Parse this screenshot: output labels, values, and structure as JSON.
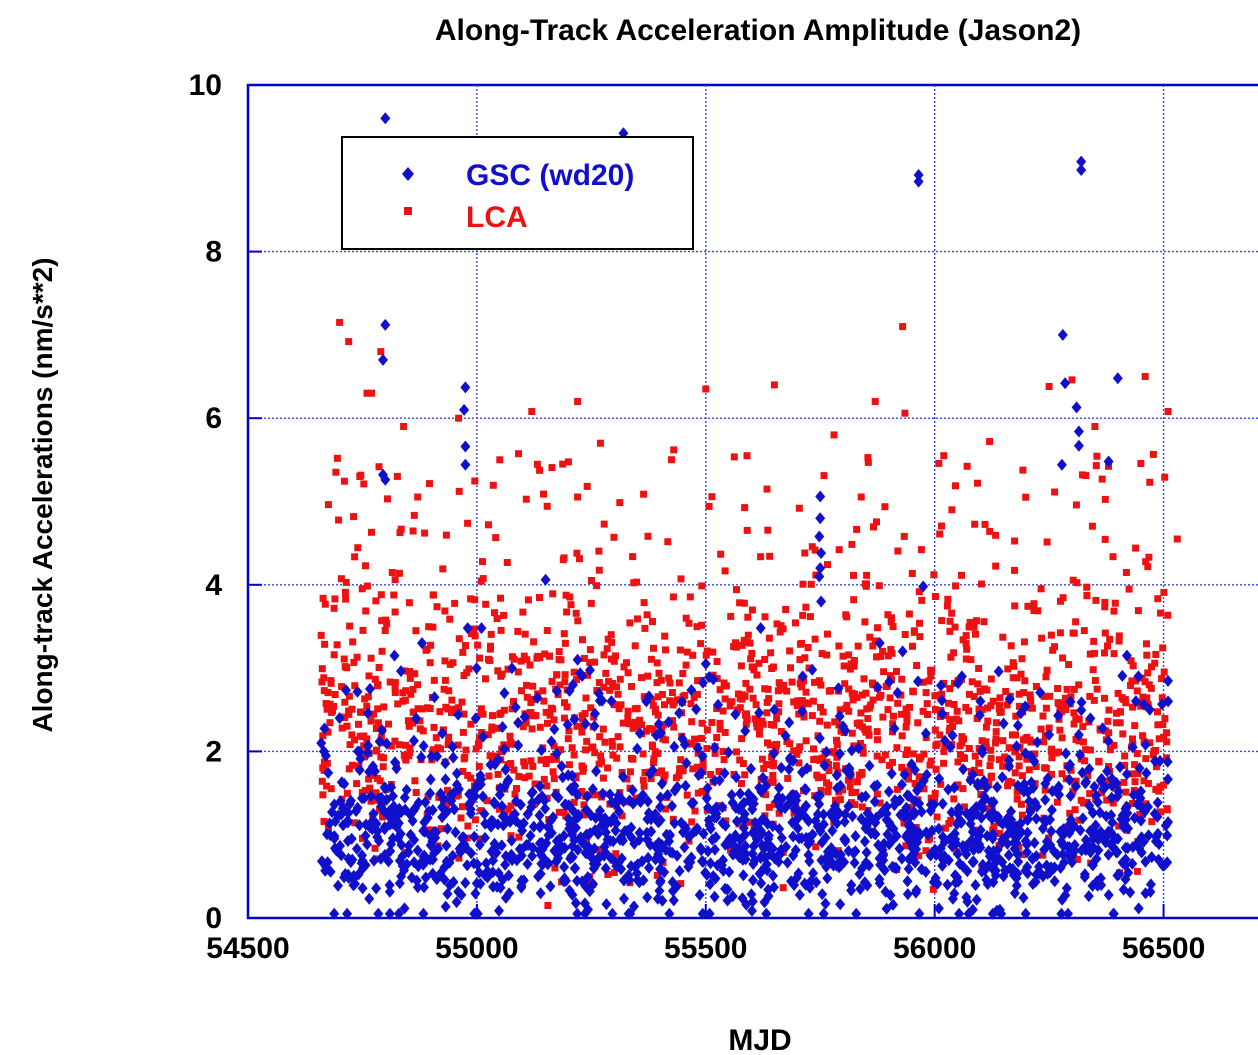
{
  "chart_data": {
    "type": "scatter",
    "title": "Along-Track Acceleration Amplitude (Jason2)",
    "xlabel": "MJD",
    "ylabel": "Along-track Accelerations (nm/s**2)",
    "xlim": [
      54500,
      56750
    ],
    "ylim": [
      0,
      10
    ],
    "xticks": [
      54500,
      55000,
      55500,
      56000,
      56500
    ],
    "xtick_labels": [
      "54500",
      "55000",
      "55500",
      "56000",
      "56500"
    ],
    "yticks": [
      0,
      2,
      4,
      6,
      8,
      10
    ],
    "ytick_labels": [
      "0",
      "2",
      "4",
      "6",
      "8",
      "10"
    ],
    "grid": true,
    "legend_position": "top-left",
    "colors": {
      "gsc": "#1010cc",
      "lca": "#ee1111",
      "axis": "#0000cc",
      "grid": "#3344dd"
    },
    "series": [
      {
        "name": "GSC (wd20)",
        "marker": "diamond",
        "color": "#1010cc",
        "points": [
          [
            54800,
            9.6
          ],
          [
            55320,
            9.42
          ],
          [
            55965,
            8.92
          ],
          [
            55965,
            8.84
          ],
          [
            56320,
            9.08
          ],
          [
            56320,
            8.98
          ],
          [
            56280,
            7.0
          ],
          [
            56285,
            6.42
          ],
          [
            56310,
            6.13
          ],
          [
            56400,
            6.48
          ],
          [
            56315,
            5.84
          ],
          [
            56315,
            5.67
          ],
          [
            56278,
            5.44
          ],
          [
            56380,
            5.48
          ],
          [
            54800,
            7.12
          ],
          [
            54795,
            6.7
          ],
          [
            54795,
            5.32
          ],
          [
            54800,
            5.26
          ],
          [
            54975,
            6.37
          ],
          [
            54972,
            6.1
          ],
          [
            54975,
            5.66
          ],
          [
            54975,
            5.44
          ],
          [
            54980,
            3.48
          ],
          [
            55010,
            3.48
          ],
          [
            55150,
            4.06
          ],
          [
            55750,
            5.06
          ],
          [
            55750,
            4.8
          ],
          [
            55748,
            4.58
          ],
          [
            55752,
            4.38
          ],
          [
            55750,
            4.2
          ],
          [
            55748,
            4.1
          ],
          [
            55752,
            3.8
          ],
          [
            55975,
            3.98
          ],
          [
            55620,
            3.48
          ],
          [
            55880,
            3.3
          ],
          [
            55930,
            3.2
          ],
          [
            54880,
            3.3
          ],
          [
            54820,
            3.15
          ],
          [
            55220,
            3.1
          ],
          [
            55500,
            3.05
          ],
          [
            56420,
            3.15
          ],
          [
            56445,
            2.9
          ],
          [
            56470,
            2.5
          ],
          [
            54660,
            2.1
          ],
          [
            54700,
            2.4
          ],
          [
            54740,
            2.0
          ],
          [
            55060,
            2.7
          ],
          [
            55210,
            2.8
          ],
          [
            55370,
            2.6
          ],
          [
            55650,
            2.5
          ],
          [
            55800,
            2.3
          ],
          [
            56100,
            2.6
          ],
          [
            56250,
            2.2
          ],
          [
            56510,
            2.6
          ]
        ]
      },
      {
        "name": "LCA",
        "marker": "square",
        "color": "#ee1111",
        "points": [
          [
            54700,
            7.15
          ],
          [
            55930,
            7.1
          ],
          [
            54720,
            6.92
          ],
          [
            54790,
            6.8
          ],
          [
            55935,
            6.06
          ],
          [
            54760,
            6.3
          ],
          [
            54770,
            6.3
          ],
          [
            54960,
            6.0
          ],
          [
            55120,
            6.08
          ],
          [
            55220,
            6.2
          ],
          [
            55500,
            6.35
          ],
          [
            55650,
            6.4
          ],
          [
            55870,
            6.2
          ],
          [
            56250,
            6.38
          ],
          [
            56300,
            6.46
          ],
          [
            56460,
            6.5
          ],
          [
            56510,
            6.08
          ],
          [
            54840,
            5.9
          ],
          [
            55050,
            5.5
          ],
          [
            55270,
            5.7
          ],
          [
            55430,
            5.62
          ],
          [
            55590,
            5.55
          ],
          [
            55780,
            5.8
          ],
          [
            56020,
            5.55
          ],
          [
            56120,
            5.72
          ],
          [
            56350,
            5.9
          ],
          [
            56530,
            4.55
          ]
        ]
      }
    ]
  }
}
